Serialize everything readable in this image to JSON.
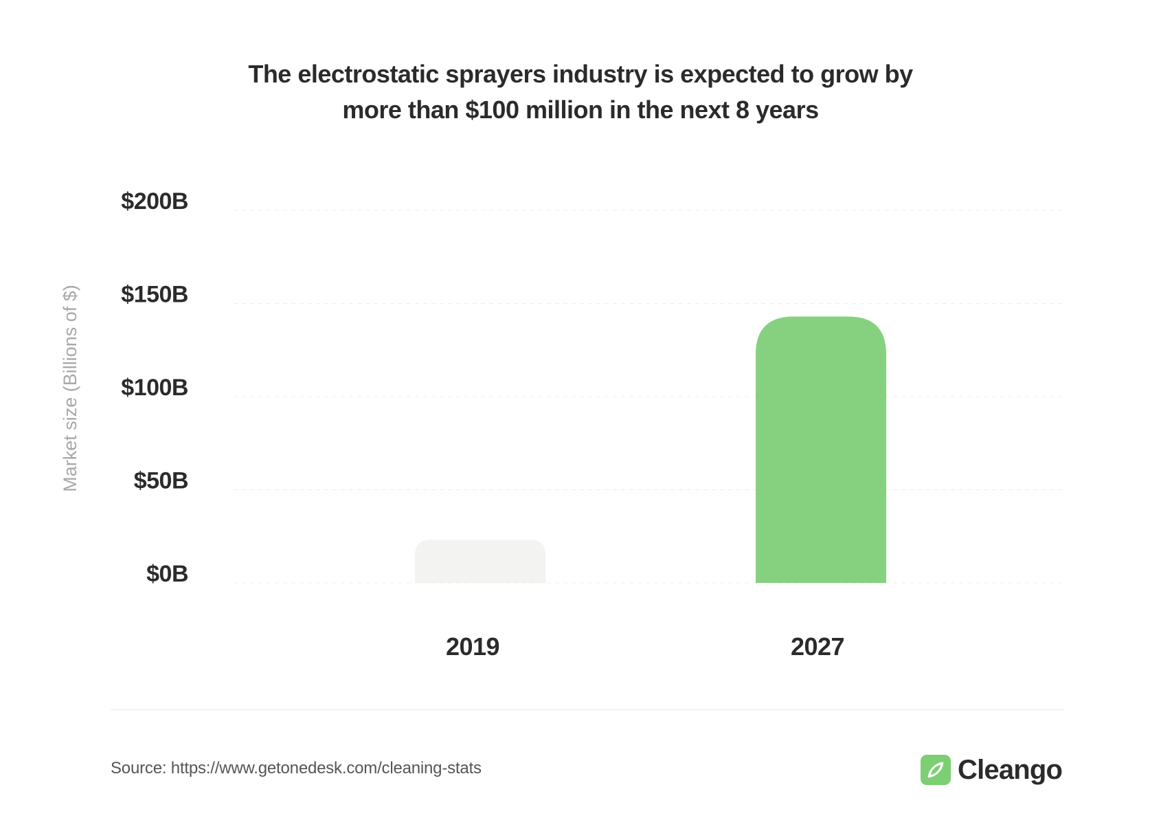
{
  "title_lines": [
    "The electrostatic sprayers industry is expected to grow by",
    "more than $100 million in the next 8 years"
  ],
  "source_text": "Source: https://www.getonedesk.com/cleaning-stats",
  "brand": {
    "name": "Cleango",
    "logo_icon": "cleango-leaf-icon"
  },
  "colors": {
    "bar_2019": "#f3f3f2",
    "bar_2027": "#86d17f",
    "logo_green": "#7ccf72"
  },
  "chart_data": {
    "type": "bar",
    "title": "The electrostatic sprayers industry is expected to grow by more than $100 million in the next 8 years",
    "xlabel": "",
    "ylabel": "Market size (Billions of $)",
    "categories": [
      "2019",
      "2027"
    ],
    "values": [
      23,
      143
    ],
    "ylim": [
      0,
      200
    ],
    "yticks": [
      0,
      50,
      100,
      150,
      200
    ],
    "ytick_labels": [
      "$0B",
      "$50B",
      "$100B",
      "$150B",
      "$200B"
    ],
    "grid": true,
    "legend": "none"
  }
}
